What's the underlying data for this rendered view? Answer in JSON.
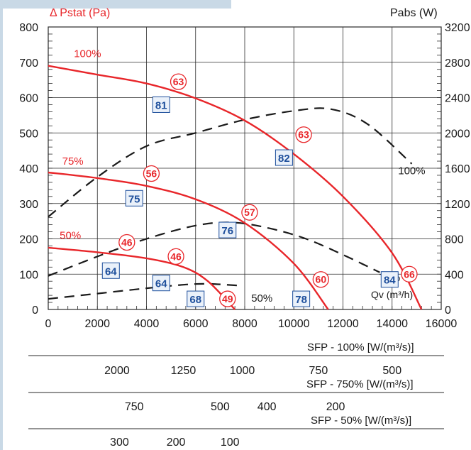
{
  "colors": {
    "accent_red": "#e8262a",
    "label_red": "#e8262a",
    "efficiency_blue": "#1e4f9c",
    "efficiency_box_fill": "#eaf1fa",
    "grid": "#2a2a2a",
    "curve_black": "#1a1a1a",
    "frame": "#c9d9e6"
  },
  "chart_data": {
    "type": "line",
    "title": "",
    "ylabel_left": "Δ Pstat (Pa)",
    "ylabel_right": "Pabs (W)",
    "xlabel": "Qv (m³/h)",
    "x_range": [
      0,
      16000
    ],
    "y_left_range": [
      0,
      800
    ],
    "y_right_range": [
      0,
      3200
    ],
    "x_ticks": [
      "0",
      "2000",
      "4000",
      "6000",
      "8000",
      "10000",
      "12000",
      "14000",
      "16000"
    ],
    "y_left_ticks": [
      "0",
      "100",
      "200",
      "300",
      "400",
      "500",
      "600",
      "700",
      "800"
    ],
    "y_right_ticks": [
      "0",
      "400",
      "800",
      "1200",
      "1600",
      "2000",
      "2400",
      "2800",
      "3200"
    ],
    "grid": true,
    "pressure_curves": [
      {
        "name": "100%",
        "label_pos": {
          "x": 1600,
          "y": 715
        },
        "points": [
          [
            0,
            690
          ],
          [
            2000,
            665
          ],
          [
            4000,
            640
          ],
          [
            6000,
            598
          ],
          [
            8000,
            535
          ],
          [
            10000,
            440
          ],
          [
            12000,
            320
          ],
          [
            14000,
            160
          ],
          [
            15200,
            0
          ]
        ]
      },
      {
        "name": "75%",
        "label_pos": {
          "x": 1000,
          "y": 410
        },
        "points": [
          [
            0,
            388
          ],
          [
            2000,
            372
          ],
          [
            4000,
            350
          ],
          [
            6000,
            312
          ],
          [
            8000,
            245
          ],
          [
            10000,
            130
          ],
          [
            11400,
            0
          ]
        ]
      },
      {
        "name": "50%",
        "label_pos": {
          "x": 900,
          "y": 200
        },
        "points": [
          [
            0,
            175
          ],
          [
            2000,
            162
          ],
          [
            4000,
            145
          ],
          [
            5500,
            120
          ],
          [
            6500,
            80
          ],
          [
            7600,
            0
          ]
        ]
      }
    ],
    "power_curves": [
      {
        "name": "100%",
        "label_pos": {
          "x": 14800,
          "y": 1530
        },
        "points": [
          [
            0,
            1050
          ],
          [
            2000,
            1500
          ],
          [
            4000,
            1850
          ],
          [
            6000,
            2000
          ],
          [
            8000,
            2150
          ],
          [
            10000,
            2250
          ],
          [
            11500,
            2270
          ],
          [
            13000,
            2100
          ],
          [
            14800,
            1650
          ]
        ]
      },
      {
        "name": "75%",
        "label_pos": {
          "x": 13900,
          "y": 320
        },
        "points": [
          [
            0,
            380
          ],
          [
            2000,
            600
          ],
          [
            4000,
            800
          ],
          [
            6000,
            950
          ],
          [
            7500,
            985
          ],
          [
            9000,
            920
          ],
          [
            10500,
            800
          ],
          [
            12000,
            620
          ],
          [
            13500,
            420
          ]
        ]
      },
      {
        "name": "50%",
        "label_pos": {
          "x": 8700,
          "y": 90
        },
        "points": [
          [
            0,
            120
          ],
          [
            2000,
            180
          ],
          [
            4000,
            240
          ],
          [
            5500,
            280
          ],
          [
            6500,
            290
          ],
          [
            7800,
            270
          ]
        ]
      }
    ],
    "sfp_markers": [
      {
        "value": "63",
        "x": 5300,
        "y": 645
      },
      {
        "value": "63",
        "x": 10400,
        "y": 495
      },
      {
        "value": "56",
        "x": 4200,
        "y": 385
      },
      {
        "value": "57",
        "x": 8200,
        "y": 275
      },
      {
        "value": "46",
        "x": 3200,
        "y": 190
      },
      {
        "value": "46",
        "x": 5200,
        "y": 150
      },
      {
        "value": "49",
        "x": 7300,
        "y": 30
      },
      {
        "value": "60",
        "x": 11100,
        "y": 85
      },
      {
        "value": "66",
        "x": 14700,
        "y": 100
      }
    ],
    "efficiency_markers": [
      {
        "value": "81",
        "x": 4600,
        "y": 580
      },
      {
        "value": "82",
        "x": 9600,
        "y": 430
      },
      {
        "value": "75",
        "x": 3500,
        "y": 315
      },
      {
        "value": "76",
        "x": 7300,
        "y": 225
      },
      {
        "value": "64",
        "x": 2550,
        "y": 110
      },
      {
        "value": "64",
        "x": 4600,
        "y": 75
      },
      {
        "value": "68",
        "x": 6000,
        "y": 30
      },
      {
        "value": "78",
        "x": 10300,
        "y": 30
      },
      {
        "value": "84",
        "x": 13900,
        "y": 85
      }
    ],
    "sfp_scales": [
      {
        "label": "SFP - 100% [W/(m³/s)]",
        "ticks": [
          {
            "text": "2000",
            "x": 2800
          },
          {
            "text": "1250",
            "x": 5500
          },
          {
            "text": "1000",
            "x": 7900
          },
          {
            "text": "750",
            "x": 11000
          },
          {
            "text": "500",
            "x": 14000
          }
        ]
      },
      {
        "label": "SFP - 750% [W/(m³/s)]",
        "ticks": [
          {
            "text": "750",
            "x": 3500
          },
          {
            "text": "500",
            "x": 7000
          },
          {
            "text": "400",
            "x": 8900
          },
          {
            "text": "200",
            "x": 11700
          }
        ]
      },
      {
        "label": "SFP - 50% [W/(m³/s)]",
        "ticks": [
          {
            "text": "300",
            "x": 2900
          },
          {
            "text": "200",
            "x": 5200
          },
          {
            "text": "100",
            "x": 7400
          }
        ]
      }
    ]
  }
}
